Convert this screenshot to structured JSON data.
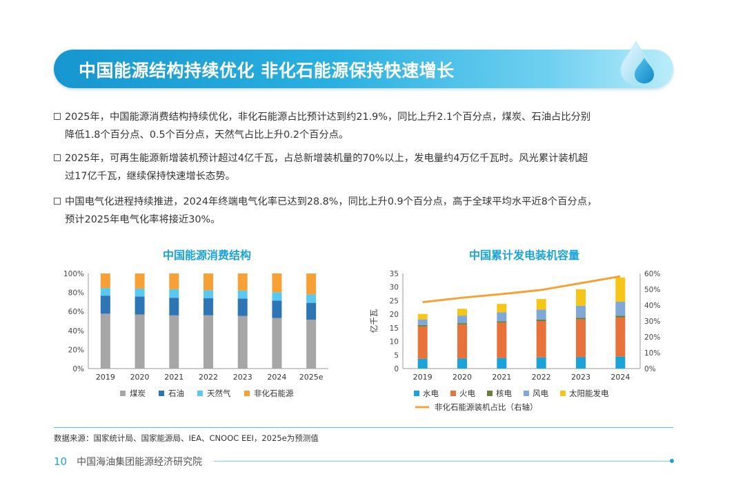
{
  "header": {
    "title": "中国能源结构持续优化  非化石能源保持快速增长"
  },
  "bullets": [
    {
      "line1": "2025年，中国能源消费结构持续优化，非化石能源占比预计达到约21.9%，同比上升2.1个百分点，煤炭、石油占比分别",
      "line2": "降低1.8个百分点、0.5个百分点，天然气占比上升0.2个百分点。"
    },
    {
      "line1": "2025年，可再生能源新增装机预计超过4亿千瓦，占总新增装机量的70%以上，发电量约4万亿千瓦时。风光累计装机超",
      "line2": "过17亿千瓦，继续保持快速增长态势。"
    },
    {
      "line1": "中国电气化进程持续推进，2024年终端电气化率已达到28.8%，同比上升0.9个百分点，高于全球平均水平近8个百分点，",
      "line2": "预计2025年电气化率将接近30%。"
    }
  ],
  "chart_data": [
    {
      "type": "bar",
      "stacked": true,
      "title": "中国能源消费结构",
      "categories": [
        "2019",
        "2020",
        "2021",
        "2022",
        "2023",
        "2024",
        "2025e"
      ],
      "y_ticks": [
        "0%",
        "20%",
        "40%",
        "60%",
        "80%",
        "100%"
      ],
      "ylim": [
        0,
        100
      ],
      "series": [
        {
          "name": "煤炭",
          "color": "#a6a6a6",
          "values": [
            57.7,
            56.9,
            55.9,
            56.0,
            55.3,
            53.2,
            51.4
          ]
        },
        {
          "name": "石油",
          "color": "#2e75b6",
          "values": [
            19.0,
            18.8,
            18.6,
            17.9,
            18.3,
            18.2,
            17.7
          ]
        },
        {
          "name": "天然气",
          "color": "#5bc8f0",
          "values": [
            8.0,
            8.4,
            8.9,
            8.4,
            8.5,
            8.8,
            9.0
          ]
        },
        {
          "name": "非化石能源",
          "color": "#f7a035",
          "values": [
            15.3,
            15.9,
            16.6,
            17.7,
            17.9,
            19.8,
            21.9
          ]
        }
      ]
    },
    {
      "type": "bar",
      "stacked": true,
      "title": "中国累计发电装机容量",
      "ylabel": "亿千瓦",
      "categories": [
        "2019",
        "2020",
        "2021",
        "2022",
        "2023",
        "2024"
      ],
      "y_ticks": [
        "0",
        "5",
        "10",
        "15",
        "20",
        "25",
        "30",
        "35"
      ],
      "ylim": [
        0,
        35
      ],
      "y2_ticks": [
        "0%",
        "10%",
        "20%",
        "30%",
        "40%",
        "50%",
        "60%"
      ],
      "y2lim": [
        0,
        60
      ],
      "series": [
        {
          "name": "水电",
          "color": "#1aa3d9",
          "values": [
            3.6,
            3.7,
            3.9,
            4.1,
            4.2,
            4.4
          ]
        },
        {
          "name": "火电",
          "color": "#e8733a",
          "values": [
            11.9,
            12.5,
            13.0,
            13.3,
            13.9,
            14.4
          ]
        },
        {
          "name": "核电",
          "color": "#6b7d3a",
          "values": [
            0.5,
            0.5,
            0.5,
            0.6,
            0.6,
            0.6
          ]
        },
        {
          "name": "风电",
          "color": "#7fa8d6",
          "values": [
            2.1,
            2.8,
            3.3,
            3.7,
            4.4,
            5.2
          ]
        },
        {
          "name": "太阳能发电",
          "color": "#f5c518",
          "values": [
            2.0,
            2.5,
            3.1,
            3.9,
            6.1,
            8.9
          ]
        }
      ],
      "line_series": {
        "name": "非化石能源装机占比（右轴）",
        "color": "#f7a035",
        "values": [
          41.9,
          44.7,
          47.0,
          49.6,
          53.9,
          58.2
        ]
      }
    }
  ],
  "source": "数据来源：国家统计局、国家能源局、IEA、CNOOC EEI，2025e为预测值",
  "footer": {
    "page_number": "10",
    "org_name": "中国海油集团能源经济研究院"
  }
}
